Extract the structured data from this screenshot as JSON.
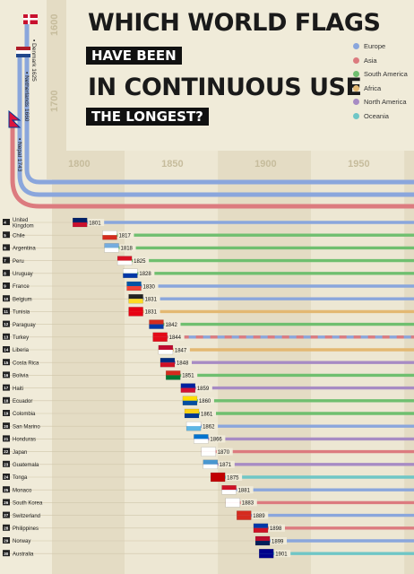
{
  "title": {
    "line1": "WHICH WORLD FLAGS",
    "line2": "HAVE BEEN",
    "line3": "IN CONTINUOUS USE",
    "line4": "THE LONGEST?"
  },
  "legend": [
    {
      "name": "Europe",
      "color": "#8aa6dc"
    },
    {
      "name": "Asia",
      "color": "#dc7b7f"
    },
    {
      "name": "South America",
      "color": "#6fbf6f"
    },
    {
      "name": "Africa",
      "color": "#e3b872"
    },
    {
      "name": "North America",
      "color": "#a78bc4"
    },
    {
      "name": "Oceania",
      "color": "#6fc6c6"
    }
  ],
  "chart_data": {
    "type": "timeline",
    "x_axis_ticks": [
      1800,
      1850,
      1900,
      1950,
      2000
    ],
    "vertical_axis_ticks": [
      1600,
      1700
    ],
    "early_flags": [
      {
        "rank": "1",
        "country": "Denmark",
        "year": 1625,
        "label": "Denmark 1625",
        "region": "Europe"
      },
      {
        "rank": "2",
        "country": "Netherlands",
        "year": 1660,
        "label": "Netherlands 1660",
        "region": "Europe"
      },
      {
        "rank": "3",
        "country": "Nepal",
        "year": 1743,
        "label": "Nepal 1743",
        "region": "Asia"
      }
    ],
    "rows": [
      {
        "rank": "4",
        "country": "United Kingdom",
        "year": 1801,
        "region": "Europe"
      },
      {
        "rank": "5",
        "country": "Chile",
        "year": 1817,
        "region": "South America"
      },
      {
        "rank": "6",
        "country": "Argentina",
        "year": 1818,
        "region": "South America"
      },
      {
        "rank": "7",
        "country": "Peru",
        "year": 1825,
        "region": "South America"
      },
      {
        "rank": "8",
        "country": "Uruguay",
        "year": 1828,
        "region": "South America"
      },
      {
        "rank": "9",
        "country": "France",
        "year": 1830,
        "region": "Europe"
      },
      {
        "rank": "10",
        "country": "Belgium",
        "year": 1831,
        "region": "Europe"
      },
      {
        "rank": "11",
        "country": "Tunisia",
        "year": 1831,
        "region": "Africa"
      },
      {
        "rank": "12",
        "country": "Paraguay",
        "year": 1842,
        "region": "South America"
      },
      {
        "rank": "13",
        "country": "Turkey",
        "year": 1844,
        "region": "Europe/Asia"
      },
      {
        "rank": "14",
        "country": "Liberia",
        "year": 1847,
        "region": "Africa"
      },
      {
        "rank": "15",
        "country": "Costa Rica",
        "year": 1848,
        "region": "North America"
      },
      {
        "rank": "16",
        "country": "Bolivia",
        "year": 1851,
        "region": "South America"
      },
      {
        "rank": "17",
        "country": "Haiti",
        "year": 1859,
        "region": "North America"
      },
      {
        "rank": "18",
        "country": "Ecuador",
        "year": 1860,
        "region": "South America"
      },
      {
        "rank": "19",
        "country": "Colombia",
        "year": 1861,
        "region": "South America"
      },
      {
        "rank": "20",
        "country": "San Marino",
        "year": 1862,
        "region": "Europe"
      },
      {
        "rank": "21",
        "country": "Honduras",
        "year": 1866,
        "region": "North America"
      },
      {
        "rank": "22",
        "country": "Japan",
        "year": 1870,
        "region": "Asia"
      },
      {
        "rank": "23",
        "country": "Guatemala",
        "year": 1871,
        "region": "North America"
      },
      {
        "rank": "24",
        "country": "Tonga",
        "year": 1875,
        "region": "Oceania"
      },
      {
        "rank": "25",
        "country": "Monaco",
        "year": 1881,
        "region": "Europe"
      },
      {
        "rank": "26",
        "country": "South Korea",
        "year": 1883,
        "region": "Asia"
      },
      {
        "rank": "27",
        "country": "Switzerland",
        "year": 1889,
        "region": "Europe"
      },
      {
        "rank": "28",
        "country": "Philippines",
        "year": 1898,
        "region": "Asia"
      },
      {
        "rank": "29",
        "country": "Norway",
        "year": 1899,
        "region": "Europe"
      },
      {
        "rank": "30",
        "country": "Australia",
        "year": 1901,
        "region": "Oceania"
      }
    ]
  }
}
